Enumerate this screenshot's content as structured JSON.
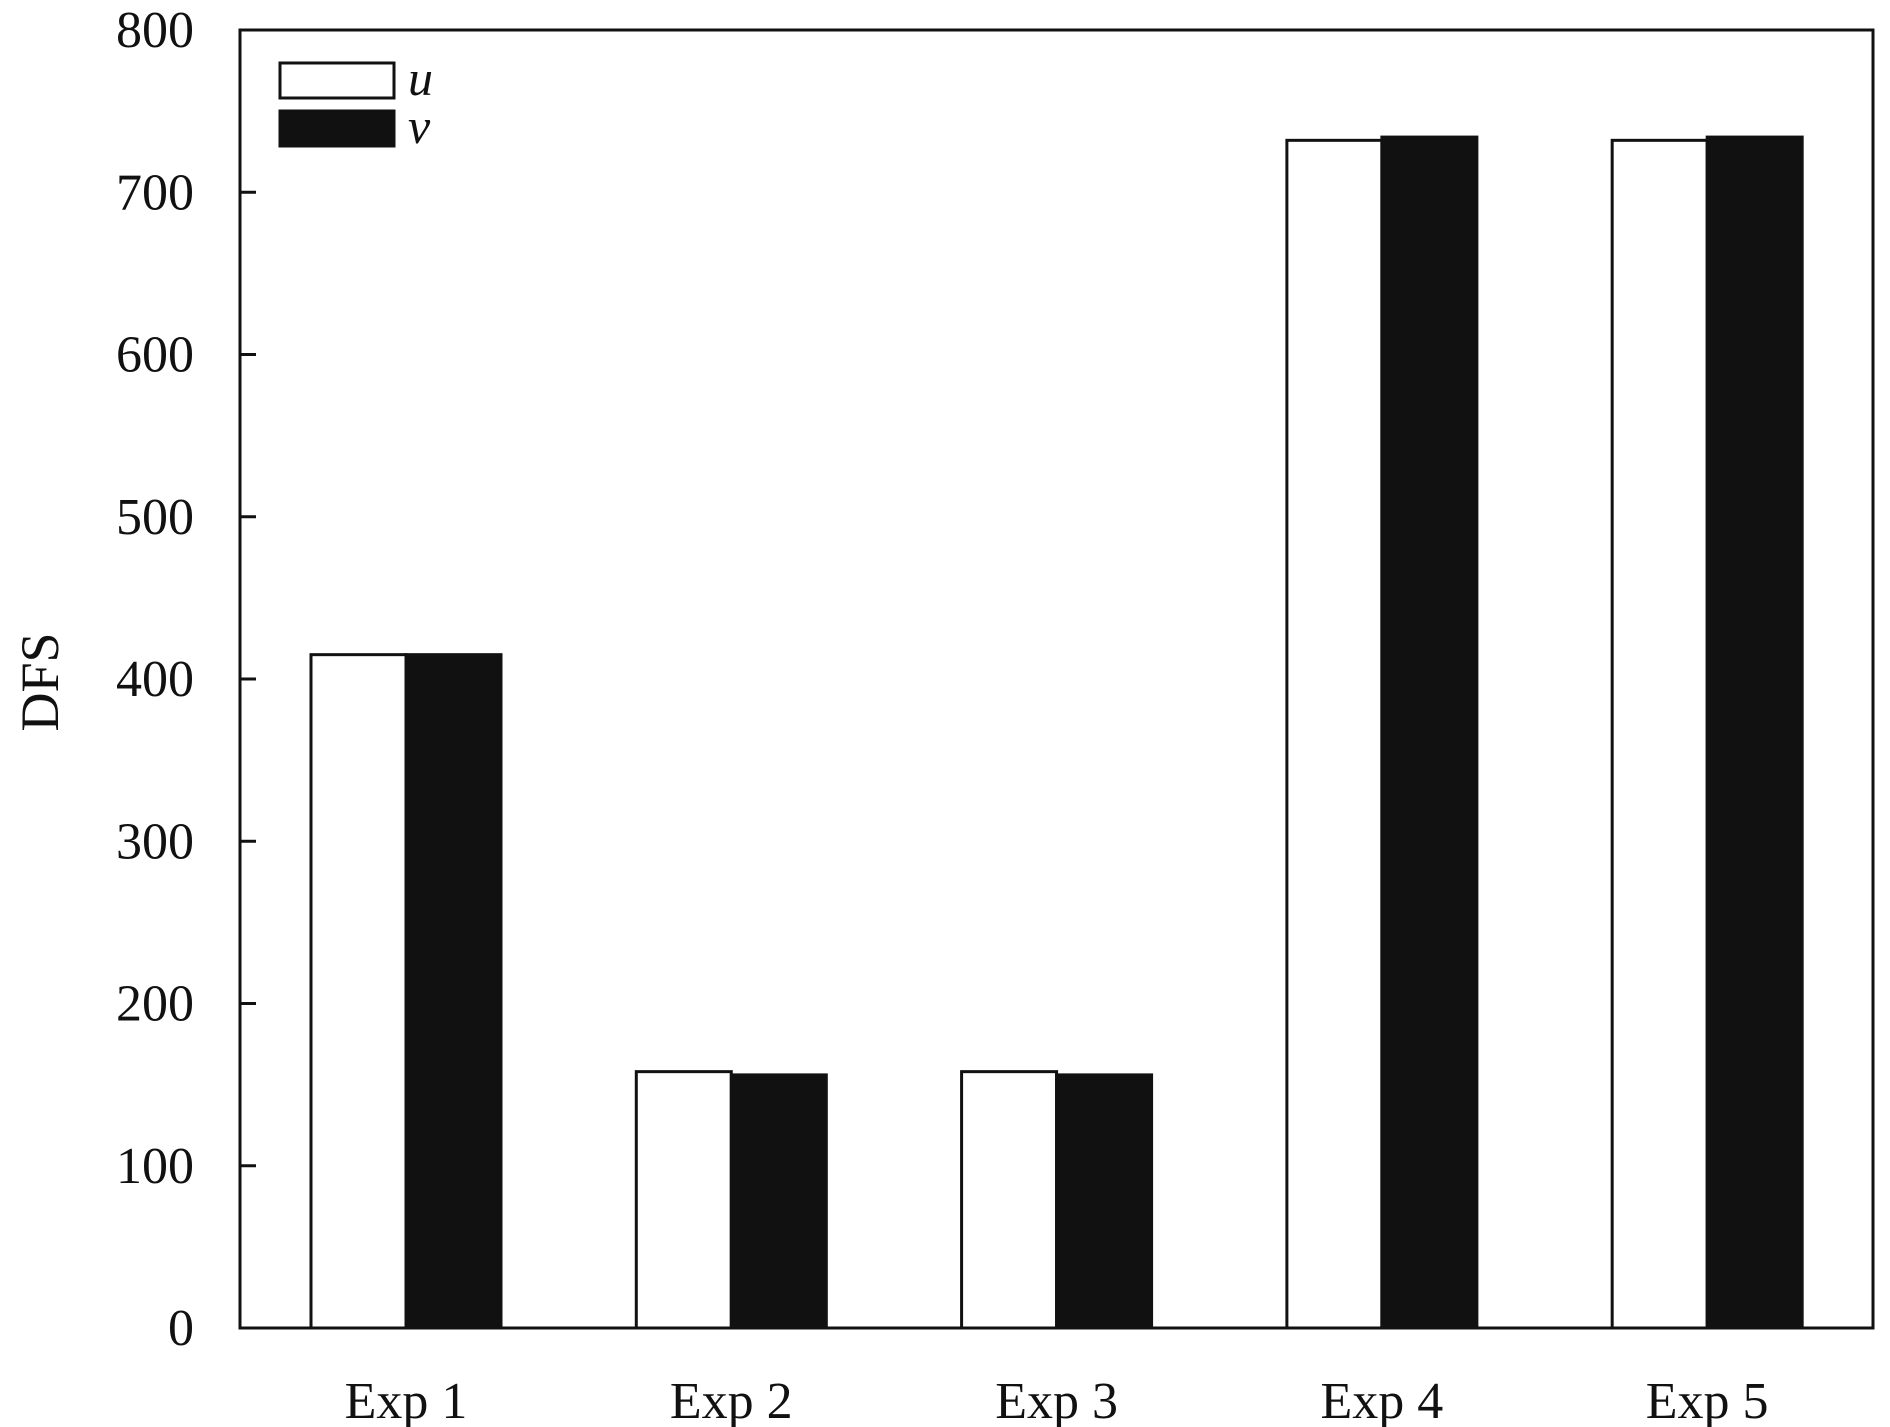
{
  "chart_data": {
    "type": "bar",
    "title": "",
    "xlabel": "",
    "ylabel": "DFS",
    "ylim": [
      0,
      800
    ],
    "yticks": [
      0,
      100,
      200,
      300,
      400,
      500,
      600,
      700,
      800
    ],
    "categories": [
      "Exp 1",
      "Exp 2",
      "Exp 3",
      "Exp 4",
      "Exp 5"
    ],
    "series": [
      {
        "name": "u",
        "values": [
          415,
          158,
          158,
          732,
          732
        ],
        "color": "#ffffff",
        "stroke": "#111111"
      },
      {
        "name": "v",
        "values": [
          415,
          156,
          156,
          734,
          734
        ],
        "color": "#111111",
        "stroke": "#111111"
      }
    ],
    "legend": {
      "placement": "top-left",
      "italic": true
    },
    "grid": false
  }
}
